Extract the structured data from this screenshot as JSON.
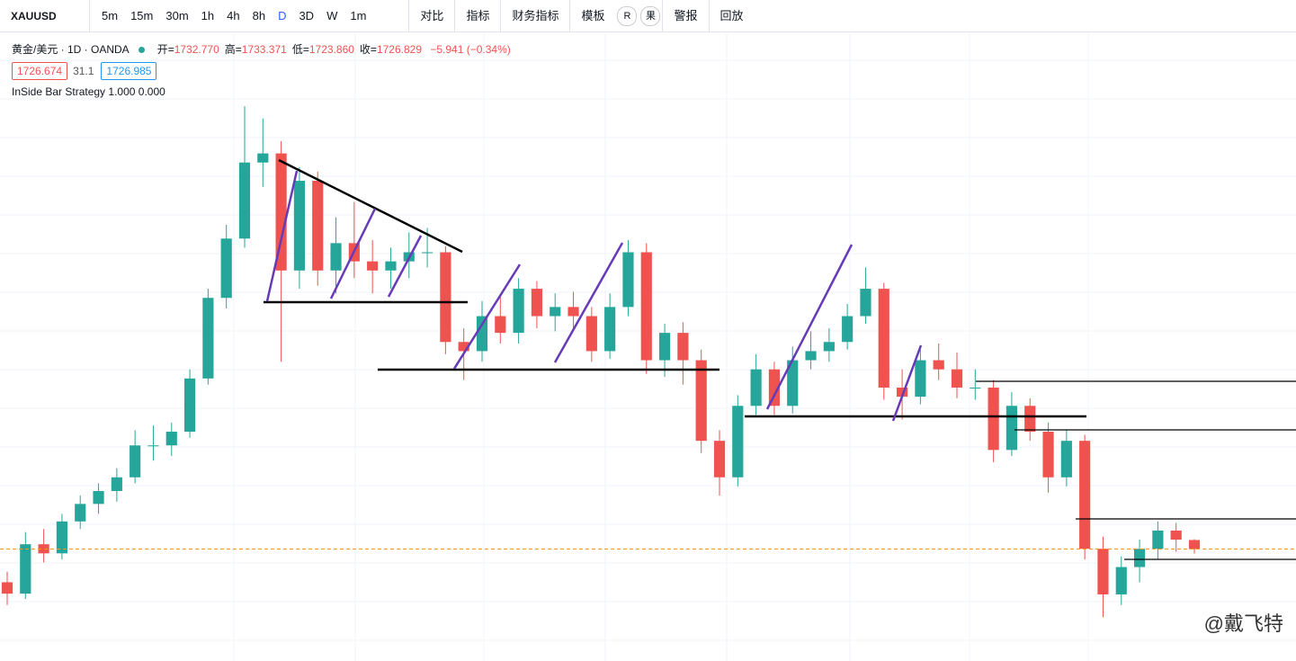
{
  "toolbar": {
    "symbol": "XAUUSD",
    "intervals": [
      "5m",
      "15m",
      "30m",
      "1h",
      "4h",
      "8h",
      "D",
      "3D",
      "W",
      "1m"
    ],
    "active_interval": "D",
    "buttons": [
      "对比",
      "指标",
      "财务指标",
      "模板"
    ],
    "badges": [
      "R",
      "果"
    ],
    "buttons2": [
      "警报",
      "回放"
    ]
  },
  "legend": {
    "name": "黄金/美元 · 1D · OANDA",
    "ohlc": [
      {
        "label": "开=",
        "value": "1732.770"
      },
      {
        "label": "高=",
        "value": "1733.371"
      },
      {
        "label": "低=",
        "value": "1723.860"
      },
      {
        "label": "收=",
        "value": "1726.829"
      }
    ],
    "change": "−5.941 (−0.34%)",
    "bid": "1726.674",
    "spread": "31.1",
    "ask": "1726.985",
    "indicator": "InSide Bar Strategy",
    "params": "1.000 0.000"
  },
  "watermark": "@戴飞特",
  "chart_data": {
    "type": "candlestick",
    "up_color": "#26a69a",
    "down_color": "#ef5350",
    "ylim": [
      1668,
      2066
    ],
    "ohlc": [
      [
        1705,
        1712,
        1690,
        1697.5
      ],
      [
        1697.5,
        1738,
        1694,
        1730
      ],
      [
        1730,
        1740,
        1718,
        1724
      ],
      [
        1724,
        1750,
        1720,
        1745
      ],
      [
        1745,
        1762,
        1740,
        1756.5
      ],
      [
        1756.5,
        1770,
        1750,
        1765
      ],
      [
        1765,
        1780,
        1758,
        1774
      ],
      [
        1774,
        1805,
        1770,
        1795
      ],
      [
        1795,
        1808,
        1785,
        1795
      ],
      [
        1795,
        1810,
        1788,
        1804
      ],
      [
        1804,
        1845,
        1800,
        1839
      ],
      [
        1839,
        1898,
        1835,
        1892
      ],
      [
        1892,
        1940,
        1885,
        1931
      ],
      [
        1931,
        2018,
        1925,
        1981
      ],
      [
        1981,
        2010,
        1965,
        1987
      ],
      [
        1987,
        1995,
        1850,
        1910
      ],
      [
        1910,
        1978,
        1898,
        1969
      ],
      [
        1969,
        1975,
        1900,
        1910
      ],
      [
        1910,
        1945,
        1895,
        1928
      ],
      [
        1928,
        1955,
        1905,
        1916
      ],
      [
        1916,
        1930,
        1895,
        1910
      ],
      [
        1910,
        1925,
        1898,
        1916
      ],
      [
        1916,
        1935,
        1905,
        1922
      ],
      [
        1922,
        1938,
        1912,
        1922
      ],
      [
        1922,
        1926,
        1855,
        1863
      ],
      [
        1863,
        1872,
        1838,
        1857
      ],
      [
        1857,
        1890,
        1850,
        1880
      ],
      [
        1880,
        1894,
        1862,
        1869
      ],
      [
        1869,
        1905,
        1862,
        1898
      ],
      [
        1898,
        1903,
        1872,
        1880
      ],
      [
        1880,
        1895,
        1870,
        1886
      ],
      [
        1886,
        1896,
        1870,
        1880
      ],
      [
        1880,
        1886,
        1850,
        1857
      ],
      [
        1857,
        1895,
        1852,
        1886
      ],
      [
        1886,
        1930,
        1880,
        1922
      ],
      [
        1922,
        1928,
        1842,
        1851
      ],
      [
        1851,
        1875,
        1840,
        1869
      ],
      [
        1869,
        1876,
        1835,
        1851
      ],
      [
        1851,
        1858,
        1790,
        1798
      ],
      [
        1798,
        1805,
        1762,
        1774
      ],
      [
        1774,
        1828,
        1768,
        1821
      ],
      [
        1821,
        1855,
        1815,
        1845
      ],
      [
        1845,
        1850,
        1815,
        1821
      ],
      [
        1821,
        1860,
        1816,
        1851
      ],
      [
        1851,
        1870,
        1845,
        1857
      ],
      [
        1857,
        1872,
        1850,
        1863
      ],
      [
        1863,
        1888,
        1858,
        1880
      ],
      [
        1880,
        1912,
        1875,
        1898
      ],
      [
        1898,
        1902,
        1825,
        1833
      ],
      [
        1833,
        1845,
        1812,
        1827
      ],
      [
        1827,
        1858,
        1822,
        1851
      ],
      [
        1851,
        1862,
        1838,
        1845
      ],
      [
        1845,
        1856,
        1826,
        1833
      ],
      [
        1833,
        1845,
        1825,
        1833
      ],
      [
        1833,
        1838,
        1784,
        1792
      ],
      [
        1792,
        1830,
        1788,
        1821
      ],
      [
        1821,
        1826,
        1798,
        1804
      ],
      [
        1804,
        1810,
        1764,
        1774
      ],
      [
        1774,
        1805,
        1768,
        1798
      ],
      [
        1798,
        1802,
        1720,
        1727
      ],
      [
        1727,
        1735,
        1682,
        1697
      ],
      [
        1697,
        1722,
        1690,
        1715
      ],
      [
        1715,
        1733,
        1705,
        1727
      ],
      [
        1727,
        1745,
        1720,
        1739
      ],
      [
        1739,
        1744,
        1725,
        1733
      ],
      [
        1732.77,
        1733.371,
        1723.86,
        1726.829
      ]
    ]
  }
}
